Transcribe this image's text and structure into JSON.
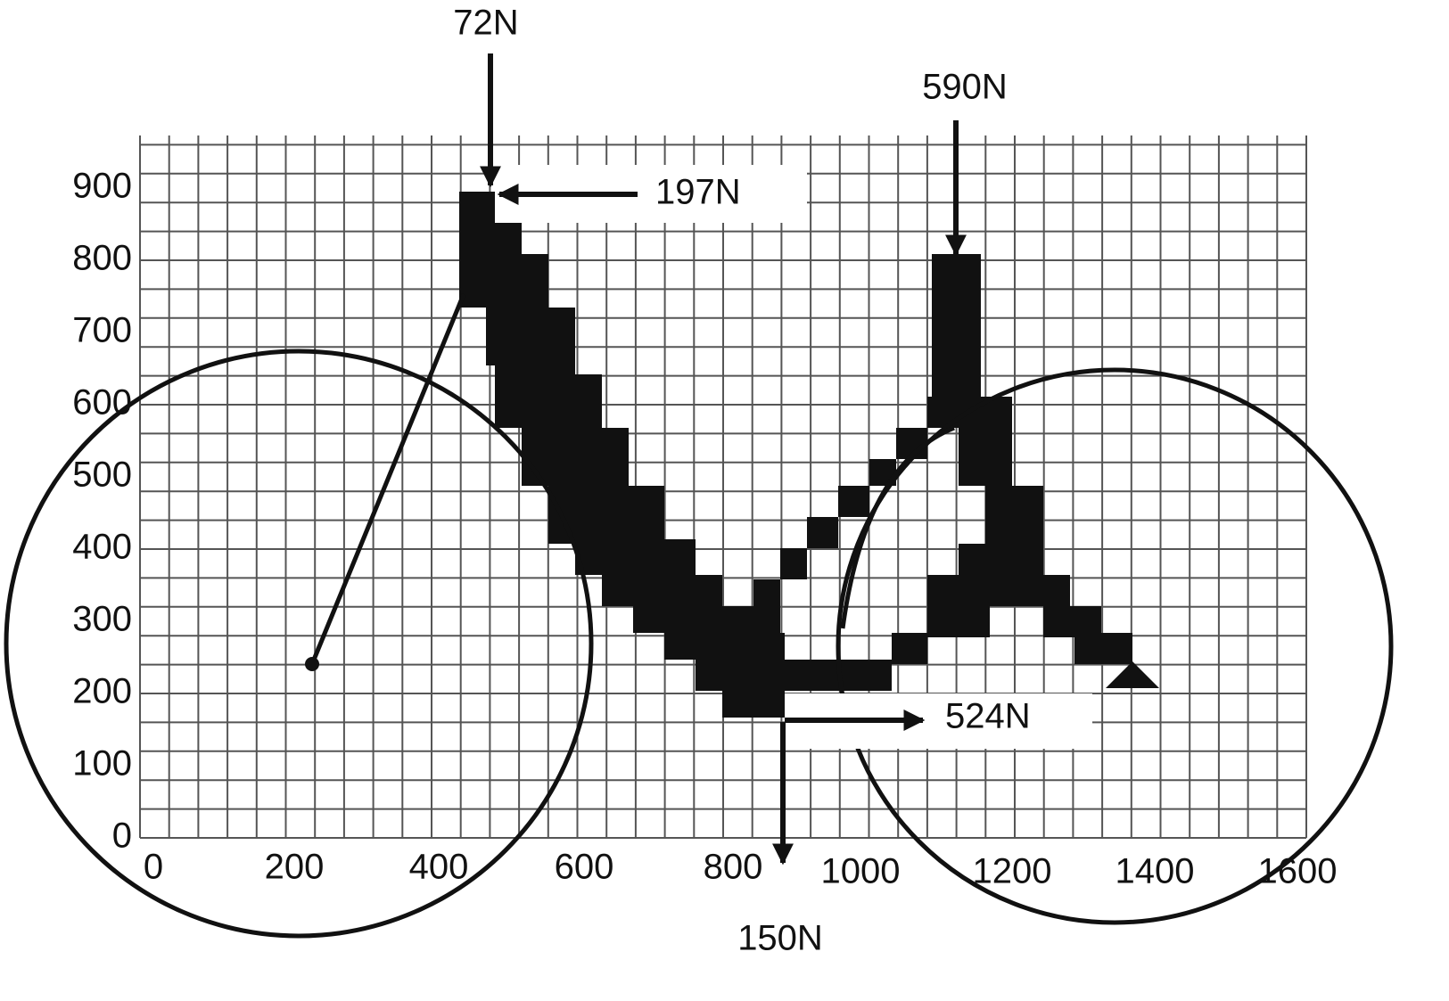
{
  "x_axis": {
    "ticks": [
      "0",
      "200",
      "400",
      "600",
      "800",
      "1000",
      "1200",
      "1400",
      "1600"
    ]
  },
  "y_axis": {
    "ticks": [
      "0",
      "100",
      "200",
      "300",
      "400",
      "500",
      "600",
      "700",
      "800",
      "900"
    ]
  },
  "forces": [
    {
      "label": "72N"
    },
    {
      "label": "197N"
    },
    {
      "label": "590N"
    },
    {
      "label": "524N"
    },
    {
      "label": "150N"
    }
  ]
}
